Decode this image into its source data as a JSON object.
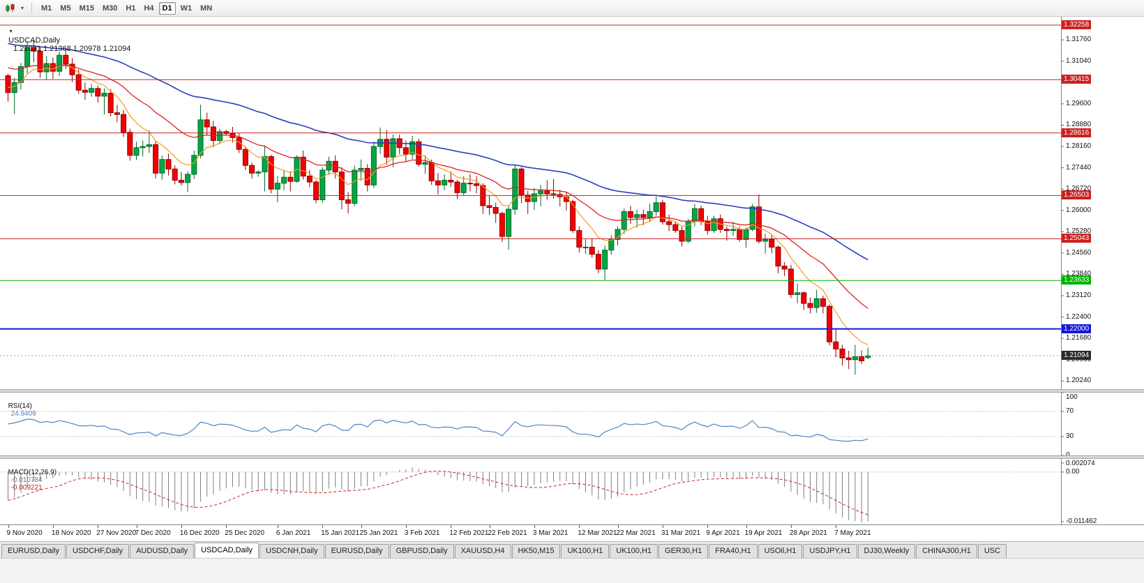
{
  "toolbar": {
    "timeframes": [
      "M1",
      "M5",
      "M15",
      "M30",
      "H1",
      "H4",
      "D1",
      "W1",
      "MN"
    ],
    "active": "D1"
  },
  "chart_title": {
    "symbol_period": "USDCAD,Daily",
    "ohlc_text": "1.21031 1.21368 1.20978 1.21094"
  },
  "rsi": {
    "name": "RSI(14)",
    "value": "24.9409",
    "axis_labels": [
      "100",
      "70",
      "30",
      "0"
    ],
    "level_lines": [
      70,
      30
    ],
    "color": "#4a86c8"
  },
  "macd": {
    "name": "MACD(12,26,9)",
    "main_value": "-0.010784",
    "signal_value": "-0.009221",
    "axis_labels": [
      "0.002074",
      "0.00",
      "-0.011462"
    ],
    "scale_top": 0.002074,
    "scale_bottom": -0.011462,
    "histogram_color": "#7f7f7f",
    "signal_color": "#d02020"
  },
  "tabs": {
    "active_index": 3,
    "items": [
      "EURUSD,Daily",
      "USDCHF,Daily",
      "AUDUSD,Daily",
      "USDCAD,Daily",
      "USDCNH,Daily",
      "EURUSD,Daily",
      "GBPUSD,Daily",
      "XAUUSD,H4",
      "HK50,M15",
      "UK100,H1",
      "UK100,H1",
      "GER30,H1",
      "FRA40,H1",
      "USOil,H1",
      "USDJPY,H1",
      "DJ30,Weekly",
      "CHINA300,H1",
      "USC"
    ]
  },
  "chart_data": {
    "type": "candlestick",
    "symbol": "USDCAD",
    "timeframe": "Daily",
    "current_price": "1.21094",
    "colors": {
      "bull": "#00a843",
      "bull_border": "#00682a",
      "bear": "#f20000",
      "bear_border": "#8f0000",
      "grid": "#ececec",
      "bid_line": "#9a9a9a",
      "current_badge": "#2b2b2b"
    },
    "y_axis_labels": [
      "1.31760",
      "1.31040",
      "1.30320",
      "1.29600",
      "1.28880",
      "1.28160",
      "1.27440",
      "1.26720",
      "1.26000",
      "1.25280",
      "1.24560",
      "1.23840",
      "1.23120",
      "1.22400",
      "1.21680",
      "1.20960",
      "1.20240"
    ],
    "horizontal_lines": [
      {
        "value": "1.32258",
        "color": "#cc2020",
        "width": 1
      },
      {
        "value": "1.30415",
        "color": "#cc2020",
        "width": 1
      },
      {
        "value": "1.28616",
        "color": "#cc2020",
        "width": 1
      },
      {
        "value": "1.26503",
        "color": "#cc2020",
        "width": 1
      },
      {
        "value": "1.25043",
        "color": "#cc2020",
        "width": 1
      },
      {
        "value": "1.23633",
        "color": "#00b400",
        "width": 1
      },
      {
        "value": "1.22000",
        "color": "#1018e0",
        "width": 2
      }
    ],
    "moving_averages": [
      {
        "period": 8,
        "seed": 1.302,
        "color": "#f59a23",
        "width": 1.2,
        "label": "fast-ma"
      },
      {
        "period": 21,
        "seed": 1.309,
        "color": "#e02020",
        "width": 1.3,
        "label": "medium-ma"
      },
      {
        "period": 55,
        "seed": 1.317,
        "color": "#2b3fc0",
        "width": 1.6,
        "label": "slow-ma"
      }
    ],
    "x_tick_labels": [
      {
        "index": 0,
        "label": "9 Nov 2020"
      },
      {
        "index": 7,
        "label": "18 Nov 2020"
      },
      {
        "index": 14,
        "label": "27 Nov 2020"
      },
      {
        "index": 20,
        "label": "7 Dec 2020"
      },
      {
        "index": 27,
        "label": "16 Dec 2020"
      },
      {
        "index": 34,
        "label": "25 Dec 2020"
      },
      {
        "index": 42,
        "label": "6 Jan 2021"
      },
      {
        "index": 49,
        "label": "15 Jan 2021"
      },
      {
        "index": 55,
        "label": "25 Jan 2021"
      },
      {
        "index": 62,
        "label": "3 Feb 2021"
      },
      {
        "index": 69,
        "label": "12 Feb 2021"
      },
      {
        "index": 75,
        "label": "22 Feb 2021"
      },
      {
        "index": 82,
        "label": "3 Mar 2021"
      },
      {
        "index": 89,
        "label": "12 Mar 2021"
      },
      {
        "index": 95,
        "label": "22 Mar 2021"
      },
      {
        "index": 102,
        "label": "31 Mar 2021"
      },
      {
        "index": 109,
        "label": "9 Apr 2021"
      },
      {
        "index": 115,
        "label": "19 Apr 2021"
      },
      {
        "index": 122,
        "label": "28 Apr 2021"
      },
      {
        "index": 129,
        "label": "7 May 2021"
      }
    ],
    "candles": [
      [
        1.3055,
        1.3062,
        1.2968,
        1.2998
      ],
      [
        1.2998,
        1.3048,
        1.2925,
        1.3032
      ],
      [
        1.3032,
        1.3098,
        1.3008,
        1.3086
      ],
      [
        1.3086,
        1.3172,
        1.3062,
        1.315
      ],
      [
        1.315,
        1.3176,
        1.31,
        1.3138
      ],
      [
        1.3138,
        1.3152,
        1.3048,
        1.3068
      ],
      [
        1.3068,
        1.3122,
        1.304,
        1.3096
      ],
      [
        1.3096,
        1.3116,
        1.3044,
        1.307
      ],
      [
        1.307,
        1.3136,
        1.3054,
        1.3124
      ],
      [
        1.3124,
        1.3142,
        1.3078,
        1.3094
      ],
      [
        1.3094,
        1.3114,
        1.3034,
        1.3058
      ],
      [
        1.3058,
        1.3076,
        1.2994,
        1.3006
      ],
      [
        1.3006,
        1.3032,
        1.2974,
        1.2999
      ],
      [
        1.2999,
        1.3026,
        1.2984,
        1.3012
      ],
      [
        1.3012,
        1.3022,
        1.2964,
        1.2986
      ],
      [
        1.2986,
        1.3012,
        1.2924,
        1.2996
      ],
      [
        1.2996,
        1.301,
        1.2918,
        1.293
      ],
      [
        1.293,
        1.2956,
        1.2898,
        1.2924
      ],
      [
        1.2924,
        1.294,
        1.2848,
        1.2864
      ],
      [
        1.2864,
        1.2876,
        1.2768,
        1.2786
      ],
      [
        1.2786,
        1.2832,
        1.277,
        1.2812
      ],
      [
        1.2812,
        1.2836,
        1.2782,
        1.2816
      ],
      [
        1.2816,
        1.287,
        1.2794,
        1.2822
      ],
      [
        1.2822,
        1.2836,
        1.2708,
        1.2726
      ],
      [
        1.2726,
        1.2786,
        1.2704,
        1.2772
      ],
      [
        1.2772,
        1.2792,
        1.2718,
        1.274
      ],
      [
        1.274,
        1.2752,
        1.2688,
        1.2702
      ],
      [
        1.2702,
        1.273,
        1.2684,
        1.2694
      ],
      [
        1.2694,
        1.2732,
        1.2662,
        1.2722
      ],
      [
        1.2722,
        1.2802,
        1.2706,
        1.2786
      ],
      [
        1.2786,
        1.2957,
        1.2776,
        1.2906
      ],
      [
        1.2906,
        1.293,
        1.2854,
        1.2882
      ],
      [
        1.2882,
        1.2902,
        1.2814,
        1.2836
      ],
      [
        1.2836,
        1.2876,
        1.2824,
        1.2866
      ],
      [
        1.2866,
        1.2872,
        1.2854,
        1.286
      ],
      [
        1.286,
        1.2882,
        1.283,
        1.2846
      ],
      [
        1.2846,
        1.2862,
        1.2794,
        1.2806
      ],
      [
        1.2806,
        1.2816,
        1.2736,
        1.2752
      ],
      [
        1.2752,
        1.2762,
        1.2708,
        1.2726
      ],
      [
        1.2726,
        1.2736,
        1.2714,
        1.273
      ],
      [
        1.273,
        1.2816,
        1.2664,
        1.2782
      ],
      [
        1.2782,
        1.2788,
        1.2658,
        1.2672
      ],
      [
        1.2672,
        1.2716,
        1.2628,
        1.2692
      ],
      [
        1.2692,
        1.2736,
        1.2668,
        1.2712
      ],
      [
        1.2712,
        1.2732,
        1.2664,
        1.2698
      ],
      [
        1.2698,
        1.2786,
        1.2694,
        1.278
      ],
      [
        1.278,
        1.2802,
        1.2704,
        1.2716
      ],
      [
        1.2716,
        1.2736,
        1.2678,
        1.2696
      ],
      [
        1.2696,
        1.2702,
        1.2624,
        1.2636
      ],
      [
        1.2636,
        1.2746,
        1.2626,
        1.2736
      ],
      [
        1.2736,
        1.2782,
        1.272,
        1.2766
      ],
      [
        1.2766,
        1.2786,
        1.2708,
        1.273
      ],
      [
        1.273,
        1.2746,
        1.2604,
        1.2636
      ],
      [
        1.2636,
        1.2662,
        1.259,
        1.2624
      ],
      [
        1.2624,
        1.2752,
        1.2614,
        1.2736
      ],
      [
        1.2736,
        1.2772,
        1.27,
        1.2742
      ],
      [
        1.2742,
        1.2756,
        1.2664,
        1.2686
      ],
      [
        1.2686,
        1.2832,
        1.2676,
        1.2816
      ],
      [
        1.2816,
        1.288,
        1.279,
        1.284
      ],
      [
        1.284,
        1.2872,
        1.2754,
        1.278
      ],
      [
        1.278,
        1.2856,
        1.2746,
        1.2842
      ],
      [
        1.2842,
        1.2856,
        1.279,
        1.2812
      ],
      [
        1.2812,
        1.2836,
        1.2764,
        1.279
      ],
      [
        1.279,
        1.2852,
        1.2774,
        1.2832
      ],
      [
        1.2832,
        1.2842,
        1.2748,
        1.2756
      ],
      [
        1.2756,
        1.2786,
        1.2724,
        1.2762
      ],
      [
        1.2762,
        1.2772,
        1.2686,
        1.27
      ],
      [
        1.27,
        1.2726,
        1.2654,
        1.2686
      ],
      [
        1.2686,
        1.2722,
        1.2668,
        1.2702
      ],
      [
        1.2702,
        1.2732,
        1.268,
        1.2696
      ],
      [
        1.2696,
        1.2702,
        1.2638,
        1.266
      ],
      [
        1.266,
        1.2716,
        1.265,
        1.2692
      ],
      [
        1.2692,
        1.2722,
        1.2664,
        1.269
      ],
      [
        1.269,
        1.2716,
        1.2658,
        1.2684
      ],
      [
        1.2684,
        1.2692,
        1.2588,
        1.2616
      ],
      [
        1.2616,
        1.2652,
        1.2584,
        1.261
      ],
      [
        1.261,
        1.2626,
        1.2558,
        1.259
      ],
      [
        1.259,
        1.2596,
        1.2494,
        1.2512
      ],
      [
        1.2512,
        1.2616,
        1.2468,
        1.2604
      ],
      [
        1.2604,
        1.2752,
        1.2586,
        1.274
      ],
      [
        1.274,
        1.2746,
        1.2624,
        1.2652
      ],
      [
        1.2652,
        1.2666,
        1.2588,
        1.263
      ],
      [
        1.263,
        1.2676,
        1.2602,
        1.2656
      ],
      [
        1.2656,
        1.2686,
        1.2614,
        1.2666
      ],
      [
        1.2666,
        1.2702,
        1.2636,
        1.2656
      ],
      [
        1.2656,
        1.2706,
        1.264,
        1.2654
      ],
      [
        1.2654,
        1.267,
        1.2614,
        1.2646
      ],
      [
        1.2646,
        1.2662,
        1.26,
        1.263
      ],
      [
        1.263,
        1.2636,
        1.2524,
        1.2532
      ],
      [
        1.2532,
        1.2546,
        1.2458,
        1.2476
      ],
      [
        1.2476,
        1.2502,
        1.2454,
        1.2476
      ],
      [
        1.2476,
        1.2506,
        1.244,
        1.2452
      ],
      [
        1.2452,
        1.2466,
        1.2388,
        1.2402
      ],
      [
        1.2402,
        1.2482,
        1.2365,
        1.2466
      ],
      [
        1.2466,
        1.2516,
        1.245,
        1.2502
      ],
      [
        1.2502,
        1.2546,
        1.2482,
        1.2536
      ],
      [
        1.2536,
        1.2606,
        1.252,
        1.2596
      ],
      [
        1.2596,
        1.2616,
        1.2554,
        1.2576
      ],
      [
        1.2576,
        1.2602,
        1.2542,
        1.2586
      ],
      [
        1.2586,
        1.2602,
        1.255,
        1.2576
      ],
      [
        1.2576,
        1.2622,
        1.256,
        1.2596
      ],
      [
        1.2596,
        1.2648,
        1.2582,
        1.2626
      ],
      [
        1.2626,
        1.2636,
        1.2552,
        1.2562
      ],
      [
        1.2562,
        1.2586,
        1.253,
        1.2552
      ],
      [
        1.2552,
        1.2562,
        1.2524,
        1.2532
      ],
      [
        1.2532,
        1.2546,
        1.2478,
        1.2496
      ],
      [
        1.2496,
        1.2572,
        1.249,
        1.2562
      ],
      [
        1.2562,
        1.2622,
        1.2546,
        1.2606
      ],
      [
        1.2606,
        1.2616,
        1.255,
        1.2562
      ],
      [
        1.2562,
        1.2582,
        1.2518,
        1.2532
      ],
      [
        1.2532,
        1.2582,
        1.2524,
        1.2572
      ],
      [
        1.2572,
        1.2586,
        1.2524,
        1.2536
      ],
      [
        1.2536,
        1.2546,
        1.2498,
        1.2532
      ],
      [
        1.2532,
        1.2562,
        1.2514,
        1.2536
      ],
      [
        1.2536,
        1.2546,
        1.2494,
        1.2502
      ],
      [
        1.2502,
        1.2542,
        1.2474,
        1.2536
      ],
      [
        1.2536,
        1.2622,
        1.253,
        1.2612
      ],
      [
        1.2612,
        1.2654,
        1.2488,
        1.2496
      ],
      [
        1.2496,
        1.2522,
        1.2454,
        1.2502
      ],
      [
        1.2502,
        1.2516,
        1.2456,
        1.2476
      ],
      [
        1.2476,
        1.2482,
        1.2388,
        1.2412
      ],
      [
        1.2412,
        1.2426,
        1.2378,
        1.2402
      ],
      [
        1.2402,
        1.2416,
        1.2304,
        1.2316
      ],
      [
        1.2316,
        1.2352,
        1.2286,
        1.2322
      ],
      [
        1.2322,
        1.2326,
        1.2264,
        1.2286
      ],
      [
        1.2286,
        1.2306,
        1.2252,
        1.2272
      ],
      [
        1.2272,
        1.2332,
        1.2254,
        1.2302
      ],
      [
        1.2302,
        1.2312,
        1.2252,
        1.2276
      ],
      [
        1.2276,
        1.2282,
        1.2144,
        1.2156
      ],
      [
        1.2156,
        1.2202,
        1.2104,
        1.2132
      ],
      [
        1.2132,
        1.2146,
        1.2076,
        1.2102
      ],
      [
        1.2102,
        1.2126,
        1.2064,
        1.2096
      ],
      [
        1.2096,
        1.2146,
        1.2045,
        1.2106
      ],
      [
        1.2106,
        1.2128,
        1.2082,
        1.2092
      ],
      [
        1.21031,
        1.21368,
        1.20978,
        1.21094
      ]
    ]
  }
}
